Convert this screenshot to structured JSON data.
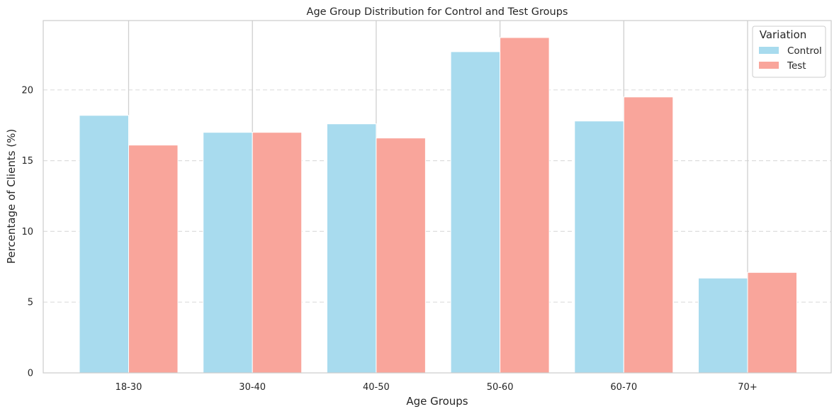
{
  "chart_data": {
    "type": "bar",
    "title": "Age Group Distribution for Control and Test Groups",
    "xlabel": "Age Groups",
    "ylabel": "Percentage of Clients (%)",
    "categories": [
      "18-30",
      "30-40",
      "40-50",
      "50-60",
      "60-70",
      "70+"
    ],
    "series": [
      {
        "name": "Control",
        "color": "#a8dbee",
        "values": [
          18.2,
          17.0,
          17.6,
          22.7,
          17.8,
          6.7
        ]
      },
      {
        "name": "Test",
        "color": "#f9a59b",
        "values": [
          16.1,
          17.0,
          16.6,
          23.7,
          19.5,
          7.1
        ]
      }
    ],
    "ylim": [
      0,
      24.9
    ],
    "yticks": [
      0,
      5,
      10,
      15,
      20
    ],
    "grid": {
      "y": true,
      "y_style": "dashed",
      "x": true,
      "x_style": "solid"
    },
    "legend": {
      "title": "Variation",
      "position": "top-right"
    }
  }
}
